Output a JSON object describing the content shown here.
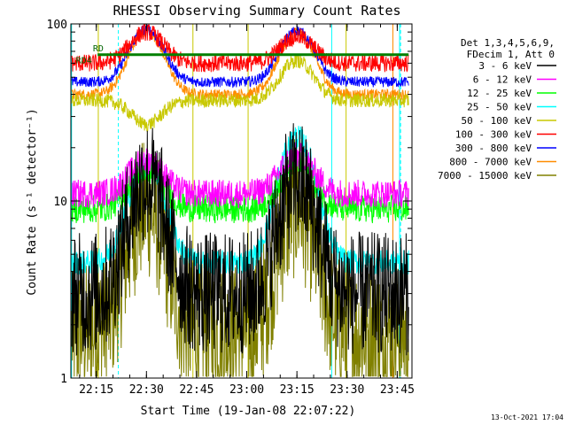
{
  "chart_data": {
    "type": "line",
    "title": "RHESSI Observing Summary Count Rates",
    "xlabel": "Start Time (19-Jan-08 22:07:22)",
    "ylabel": "Count Rate (s⁻¹ detector⁻¹)",
    "y_scale": "log",
    "ylim": [
      1,
      100
    ],
    "xlim_minutes_after_start": [
      0,
      102
    ],
    "x_ticks": [
      {
        "label": "22:15",
        "minute": 7.6
      },
      {
        "label": "22:30",
        "minute": 22.6
      },
      {
        "label": "22:45",
        "minute": 37.6
      },
      {
        "label": "23:00",
        "minute": 52.6
      },
      {
        "label": "23:15",
        "minute": 67.6
      },
      {
        "label": "23:30",
        "minute": 82.6
      },
      {
        "label": "23:45",
        "minute": 97.6
      }
    ],
    "y_ticks": [
      {
        "label": "1",
        "value": 1
      },
      {
        "label": "10",
        "value": 10
      },
      {
        "label": "100",
        "value": 100
      }
    ],
    "legend_header": [
      "Det 1,3,4,5,6,9,",
      "FDecim 1, Att 0"
    ],
    "legend_position": "right",
    "series": [
      {
        "name": "3 - 6 keV",
        "color": "#000000",
        "peaks": [
          13,
          13
        ],
        "base": 3.0,
        "noise": 0.35
      },
      {
        "name": "6 - 12 keV",
        "color": "#ff00ff",
        "peaks": [
          17,
          18
        ],
        "base": 11.0,
        "noise": 0.08
      },
      {
        "name": "12 - 25 keV",
        "color": "#00ff00",
        "peaks": [
          15,
          16
        ],
        "base": 9.0,
        "noise": 0.08
      },
      {
        "name": "25 - 50 keV",
        "color": "#00ffff",
        "peaks": [
          16,
          23
        ],
        "base": 4.5,
        "noise": 0.07
      },
      {
        "name": "50 - 100 keV",
        "color": "#c8c800",
        "peaks": [
          27,
          62
        ],
        "base": 37.0,
        "noise": 0.04
      },
      {
        "name": "100 - 300 keV",
        "color": "#ff0000",
        "peaks": [
          90,
          85
        ],
        "base": 60.0,
        "noise": 0.05
      },
      {
        "name": "300 - 800 keV",
        "color": "#0000ff",
        "peaks": [
          93,
          92
        ],
        "base": 47.0,
        "noise": 0.03
      },
      {
        "name": "800 - 7000 keV",
        "color": "#ff8c00",
        "peaks": [
          91,
          90
        ],
        "base": 40.0,
        "noise": 0.03
      },
      {
        "name": "7000 - 15000 keV",
        "color": "#808000",
        "peaks": [
          9,
          9
        ],
        "base": 1.8,
        "noise": 0.4
      }
    ],
    "background_count_rate": 67,
    "annotations": [
      "RD4",
      "RD"
    ],
    "markers": {
      "solid_cyan_minutes": [
        0.2,
        78.0,
        98.3
      ],
      "dashed_cyan_minutes": [
        14.2,
        98.6
      ],
      "solid_olive_minutes": [
        8.2,
        36.5,
        53.0,
        82.3
      ],
      "solid_orange_minutes": [
        96.3
      ]
    }
  },
  "footer_timestamp": "13-Oct-2021 17:04"
}
